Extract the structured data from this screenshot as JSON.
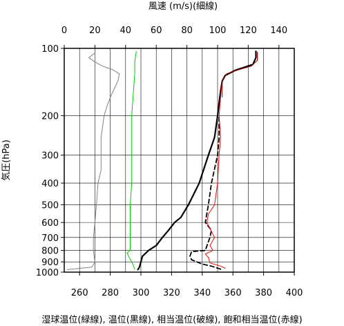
{
  "chart_data": {
    "type": "line",
    "title_top": "風速 (m/s)(細線)",
    "ylabel": "気圧(hPa)",
    "xlabel_bottom": "湿球温位(緑線), 温位(黒線), 相当温位(破線), 飽和相当温位(赤線)",
    "y_scale": "log",
    "ylim": [
      1000,
      100
    ],
    "y_ticks": [
      100,
      200,
      300,
      400,
      500,
      600,
      700,
      800,
      900,
      1000
    ],
    "y_tick_labels": [
      "100",
      "200",
      "300",
      "400",
      "500",
      "600",
      "700",
      "800",
      "900",
      "1000"
    ],
    "x_bottom_range": [
      250,
      400
    ],
    "x_bottom_ticks": [
      260,
      280,
      300,
      320,
      340,
      360,
      380,
      400
    ],
    "x_bottom_tick_labels": [
      "260",
      "280",
      "300",
      "320",
      "340",
      "360",
      "380",
      "400"
    ],
    "x_top_range": [
      0,
      150
    ],
    "x_top_ticks": [
      0,
      20,
      40,
      60,
      80,
      100,
      120,
      140
    ],
    "x_top_tick_labels": [
      "0",
      "20",
      "40",
      "60",
      "80",
      "100",
      "120",
      "140"
    ],
    "grid": true,
    "colors": {
      "wind": "#808080",
      "wet_bulb_theta": "#00cc00",
      "theta": "#000000",
      "theta_e": "#000000",
      "theta_es_red": "#ff0000",
      "theta_es_dark": "#8b0000"
    },
    "series": [
      {
        "key": "wind",
        "axis": "top",
        "style": "thin",
        "points": [
          [
            2,
            975
          ],
          [
            18,
            950
          ],
          [
            20,
            900
          ],
          [
            19,
            800
          ],
          [
            19,
            700
          ],
          [
            20,
            600
          ],
          [
            21,
            500
          ],
          [
            22,
            400
          ],
          [
            24,
            350
          ],
          [
            24,
            300
          ],
          [
            24,
            250
          ],
          [
            26,
            200
          ],
          [
            28,
            180
          ],
          [
            31,
            160
          ],
          [
            35,
            140
          ],
          [
            36,
            130
          ],
          [
            32,
            125
          ],
          [
            25,
            120
          ],
          [
            20,
            115
          ],
          [
            16,
            110
          ],
          [
            20,
            105
          ]
        ]
      },
      {
        "key": "wet_bulb_theta",
        "axis": "bottom",
        "style": "thin",
        "points": [
          [
            296,
            970
          ],
          [
            294,
            900
          ],
          [
            292,
            850
          ],
          [
            291,
            820
          ],
          [
            293,
            800
          ],
          [
            293,
            700
          ],
          [
            293,
            600
          ],
          [
            293,
            500
          ],
          [
            294,
            400
          ],
          [
            294,
            300
          ],
          [
            294,
            200
          ],
          [
            295,
            160
          ],
          [
            296,
            130
          ],
          [
            296,
            115
          ],
          [
            297,
            103
          ]
        ]
      },
      {
        "key": "theta",
        "axis": "bottom",
        "style": "thick",
        "points": [
          [
            298,
            975
          ],
          [
            299,
            950
          ],
          [
            300,
            900
          ],
          [
            301,
            850
          ],
          [
            305,
            800
          ],
          [
            310,
            760
          ],
          [
            314,
            700
          ],
          [
            318,
            650
          ],
          [
            322,
            600
          ],
          [
            326,
            570
          ],
          [
            331,
            500
          ],
          [
            338,
            400
          ],
          [
            344,
            300
          ],
          [
            348,
            250
          ],
          [
            350,
            200
          ],
          [
            351,
            175
          ],
          [
            352,
            155
          ],
          [
            353,
            140
          ],
          [
            355,
            132
          ],
          [
            362,
            125
          ],
          [
            373,
            118
          ],
          [
            375,
            110
          ],
          [
            375,
            103
          ]
        ]
      },
      {
        "key": "theta_e",
        "axis": "bottom",
        "style": "dashed",
        "points": [
          [
            352,
            970
          ],
          [
            346,
            940
          ],
          [
            340,
            920
          ],
          [
            333,
            880
          ],
          [
            332,
            850
          ],
          [
            333,
            810
          ],
          [
            342,
            800
          ],
          [
            345,
            700
          ],
          [
            346,
            650
          ],
          [
            342,
            600
          ],
          [
            344,
            500
          ],
          [
            346,
            400
          ],
          [
            350,
            300
          ],
          [
            351,
            250
          ],
          [
            351,
            200
          ]
        ]
      },
      {
        "key": "theta_es_red",
        "axis": "bottom",
        "style": "thin",
        "points": [
          [
            355,
            960
          ],
          [
            352,
            940
          ],
          [
            345,
            910
          ],
          [
            344,
            860
          ],
          [
            342,
            830
          ],
          [
            347,
            800
          ],
          [
            345,
            760
          ],
          [
            348,
            700
          ],
          [
            343,
            600
          ],
          [
            344,
            550
          ],
          [
            348,
            500
          ],
          [
            350,
            400
          ],
          [
            351,
            300
          ],
          [
            352,
            250
          ],
          [
            351,
            200
          ],
          [
            352,
            165
          ],
          [
            353,
            140
          ],
          [
            356,
            130
          ],
          [
            363,
            125
          ],
          [
            372,
            120
          ],
          [
            376,
            113
          ],
          [
            376,
            104
          ]
        ]
      },
      {
        "key": "theta_es_dark",
        "axis": "bottom",
        "style": "thin",
        "points": [
          [
            353,
            165
          ],
          [
            353,
            140
          ],
          [
            356,
            130
          ],
          [
            363,
            125
          ],
          [
            372,
            120
          ],
          [
            376,
            113
          ],
          [
            376,
            104
          ]
        ]
      }
    ]
  }
}
